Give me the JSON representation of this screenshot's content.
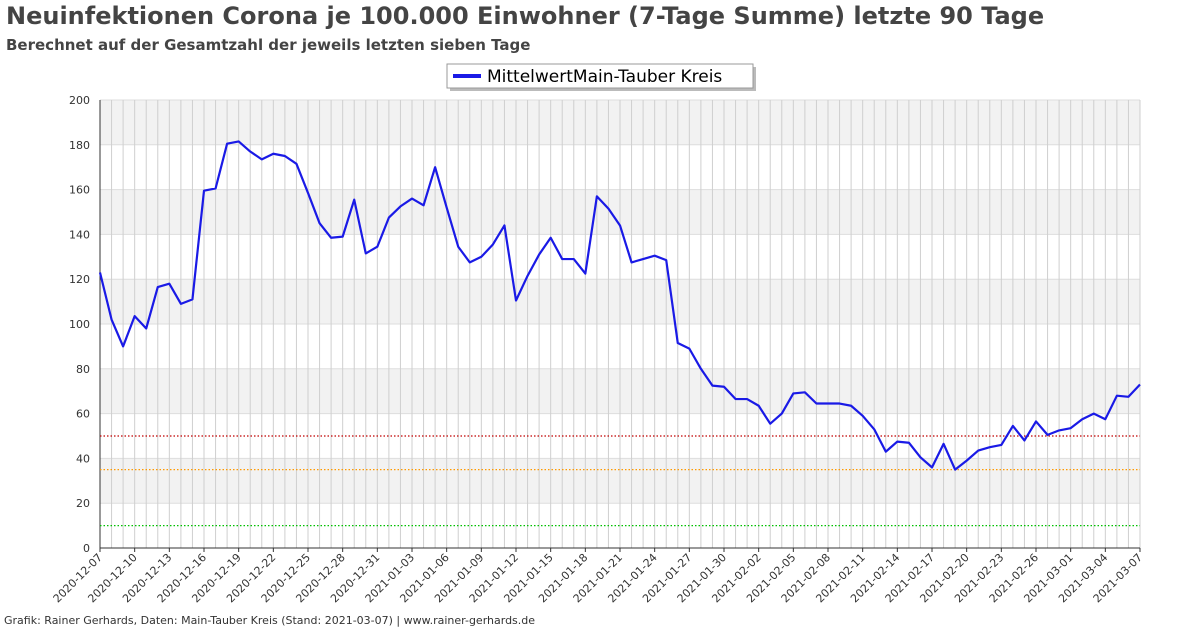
{
  "chart_data": {
    "type": "line",
    "title": "Neuinfektionen Corona je 100.000 Einwohner (7-Tage Summe) letzte 90 Tage",
    "subtitle": "Berechnet auf der Gesamtzahl der jeweils letzten sieben Tage",
    "footer": "Grafik: Rainer Gerhards, Daten: Main-Tauber Kreis (Stand: 2021-03-07) | www.rainer-gerhards.de",
    "categories": [
      "2020-12-07",
      null,
      null,
      "2020-12-10",
      null,
      null,
      "2020-12-13",
      null,
      null,
      "2020-12-16",
      null,
      null,
      "2020-12-19",
      null,
      null,
      "2020-12-22",
      null,
      null,
      "2020-12-25",
      null,
      null,
      "2020-12-28",
      null,
      null,
      "2020-12-31",
      null,
      null,
      "2021-01-03",
      null,
      null,
      "2021-01-06",
      null,
      null,
      "2021-01-09",
      null,
      null,
      "2021-01-12",
      null,
      null,
      "2021-01-15",
      null,
      null,
      "2021-01-18",
      null,
      null,
      "2021-01-21",
      null,
      null,
      "2021-01-24",
      null,
      null,
      "2021-01-27",
      null,
      null,
      "2021-01-30",
      null,
      null,
      "2021-02-02",
      null,
      null,
      "2021-02-05",
      null,
      null,
      "2021-02-08",
      null,
      null,
      "2021-02-11",
      null,
      null,
      "2021-02-14",
      null,
      null,
      "2021-02-17",
      null,
      null,
      "2021-02-20",
      null,
      null,
      "2021-02-23",
      null,
      null,
      "2021-02-26",
      null,
      null,
      "2021-03-01",
      null,
      null,
      "2021-03-04",
      null,
      null,
      "2021-03-07"
    ],
    "series": [
      {
        "name": "MittelwertMain-Tauber Kreis",
        "color": "#1a1ae6",
        "values": [
          123,
          102,
          90,
          103.5,
          98,
          116.5,
          118,
          109,
          111,
          159.5,
          160.5,
          180.5,
          181.5,
          177,
          173.5,
          176,
          175,
          171.5,
          158.5,
          145,
          138.5,
          139,
          155.5,
          131.5,
          134.5,
          147.5,
          152.5,
          156,
          153,
          170,
          152,
          134.5,
          127.5,
          130,
          135.5,
          144,
          110.5,
          121.5,
          131,
          138.5,
          129,
          129,
          122.5,
          157,
          151.5,
          144,
          127.5,
          129,
          130.5,
          128.5,
          91.5,
          89,
          80,
          72.5,
          72,
          66.5,
          66.5,
          63.5,
          55.5,
          60,
          69,
          69.5,
          64.5,
          64.5,
          64.5,
          63.5,
          59,
          53,
          43,
          47.5,
          47,
          40.5,
          36,
          46.5,
          35,
          39,
          43.5,
          45,
          46,
          54.5,
          48,
          56.5,
          50.5,
          52.5,
          53.5,
          57.5,
          60,
          57.5,
          68,
          67.5,
          73
        ]
      }
    ],
    "reference_lines": [
      {
        "value": 50,
        "color": "#c00000"
      },
      {
        "value": 35,
        "color": "#ff9900"
      },
      {
        "value": 10,
        "color": "#00c000"
      }
    ],
    "ylim": [
      0,
      200
    ],
    "yticks": [
      0,
      20,
      40,
      60,
      80,
      100,
      120,
      140,
      160,
      180,
      200
    ],
    "grid": true,
    "legend": "top"
  }
}
